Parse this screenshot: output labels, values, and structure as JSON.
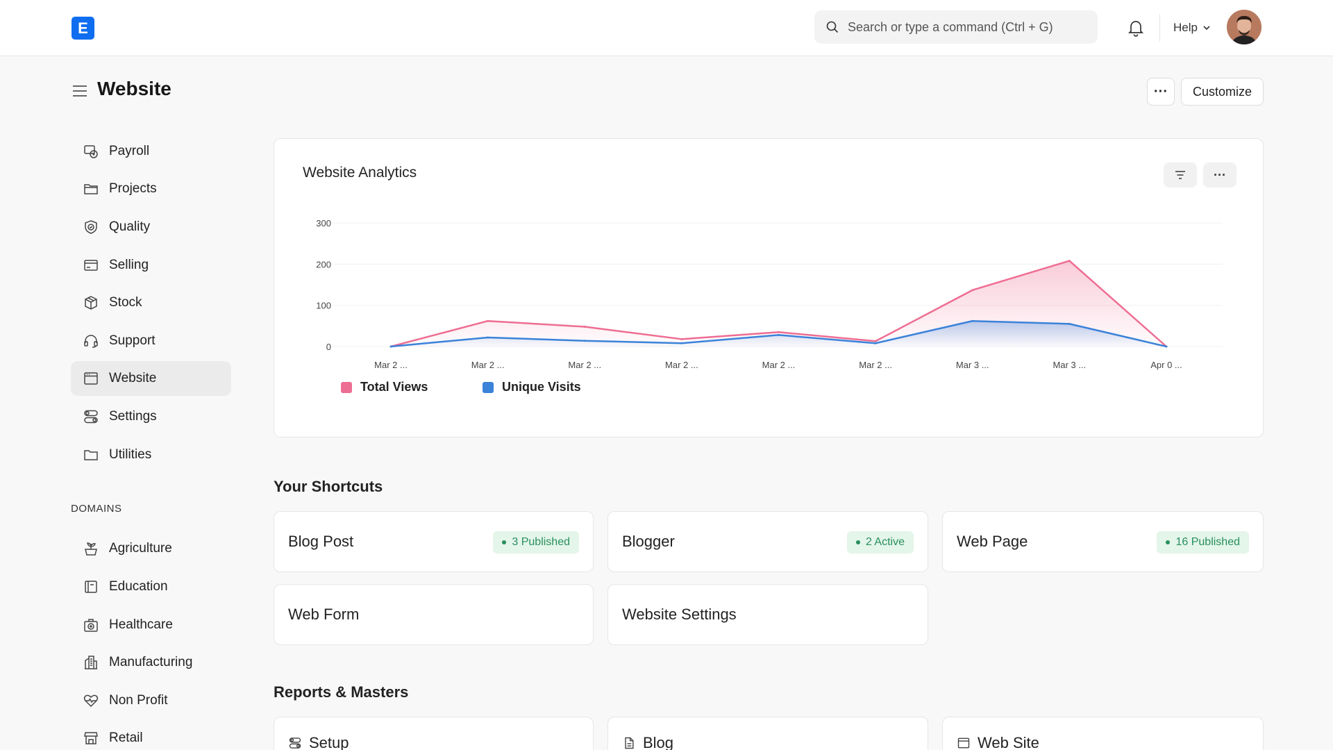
{
  "navbar": {
    "logo_letter": "E",
    "search_placeholder": "Search or type a command (Ctrl + G)",
    "help_label": "Help"
  },
  "page": {
    "title": "Website",
    "more_label": "···",
    "customize_label": "Customize"
  },
  "sidebar": {
    "items": [
      {
        "label": "Payroll",
        "icon": "payroll-icon"
      },
      {
        "label": "Projects",
        "icon": "folder-icon"
      },
      {
        "label": "Quality",
        "icon": "shield-check-icon"
      },
      {
        "label": "Selling",
        "icon": "card-icon"
      },
      {
        "label": "Stock",
        "icon": "box-icon"
      },
      {
        "label": "Support",
        "icon": "headset-icon"
      },
      {
        "label": "Website",
        "icon": "browser-icon",
        "active": true
      },
      {
        "label": "Settings",
        "icon": "toggles-icon"
      },
      {
        "label": "Utilities",
        "icon": "folder-icon"
      }
    ],
    "domains_label": "DOMAINS",
    "domains": [
      {
        "label": "Agriculture",
        "icon": "plant-icon"
      },
      {
        "label": "Education",
        "icon": "book-icon"
      },
      {
        "label": "Healthcare",
        "icon": "medical-kit-icon"
      },
      {
        "label": "Manufacturing",
        "icon": "building-icon"
      },
      {
        "label": "Non Profit",
        "icon": "heart-pulse-icon"
      },
      {
        "label": "Retail",
        "icon": "store-icon"
      }
    ]
  },
  "chart": {
    "title": "Website Analytics",
    "more_label": "···"
  },
  "chart_data": {
    "type": "line",
    "title": "Website Analytics",
    "x": [
      "Mar 2 ...",
      "Mar 2 ...",
      "Mar 2 ...",
      "Mar 2 ...",
      "Mar 2 ...",
      "Mar 2 ...",
      "Mar 3 ...",
      "Mar 3 ...",
      "Apr 0 ..."
    ],
    "series": [
      {
        "name": "Total Views",
        "color": "#ee6d92",
        "values": [
          0,
          62,
          48,
          18,
          35,
          13,
          137,
          208,
          0
        ]
      },
      {
        "name": "Unique Visits",
        "color": "#3b82d9",
        "values": [
          0,
          22,
          14,
          8,
          28,
          8,
          62,
          55,
          0
        ]
      }
    ],
    "ylim": [
      0,
      300
    ],
    "yticks": [
      0,
      100,
      200,
      300
    ],
    "grid": true,
    "legend": "bottom-left"
  },
  "shortcuts": {
    "title": "Your Shortcuts",
    "items": [
      {
        "label": "Blog Post",
        "badge": "3 Published"
      },
      {
        "label": "Blogger",
        "badge": "2 Active"
      },
      {
        "label": "Web Page",
        "badge": "16 Published"
      },
      {
        "label": "Web Form",
        "badge": ""
      },
      {
        "label": "Website Settings",
        "badge": ""
      }
    ]
  },
  "reports": {
    "title": "Reports & Masters",
    "items": [
      {
        "label": "Setup",
        "icon": "toggles-icon"
      },
      {
        "label": "Blog",
        "icon": "document-icon"
      },
      {
        "label": "Web Site",
        "icon": "browser-icon"
      }
    ]
  },
  "colors": {
    "accent": "#0f6ef0",
    "badge_bg": "#e4f5e9",
    "badge_text": "#278f5e"
  }
}
